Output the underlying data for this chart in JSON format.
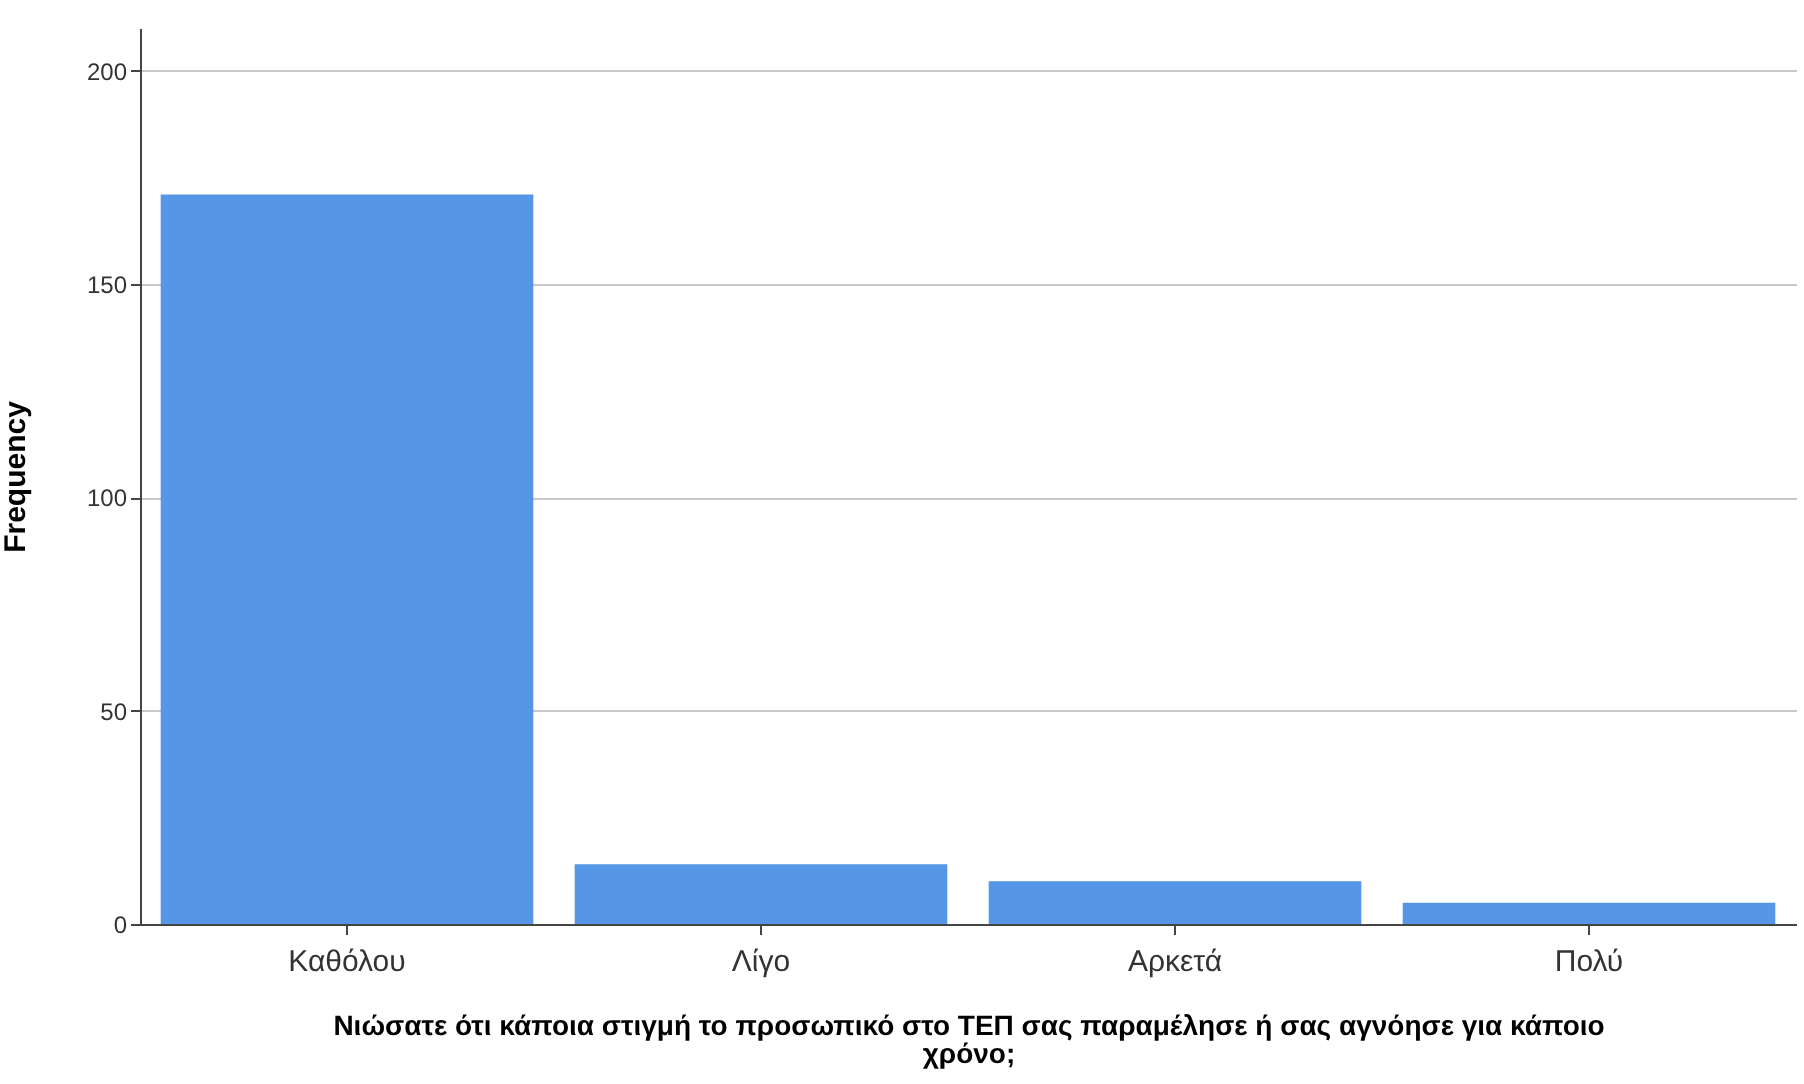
{
  "chart_data": {
    "type": "bar",
    "xlabel": "Νιώσατε ότι κάποια στιγμή το προσωπικό στο ΤΕΠ σας παραμέλησε ή σας αγνόησε για κάποιο χρόνο;",
    "ylabel": "Frequency",
    "categories": [
      "Καθόλου",
      "Λίγο",
      "Αρκετά",
      "Πολύ"
    ],
    "values": [
      171,
      14,
      10,
      5
    ],
    "color": "#5596e6",
    "ylim": [
      0,
      210
    ],
    "yticks": [
      0,
      50,
      100,
      150,
      200
    ],
    "grid": "y"
  }
}
